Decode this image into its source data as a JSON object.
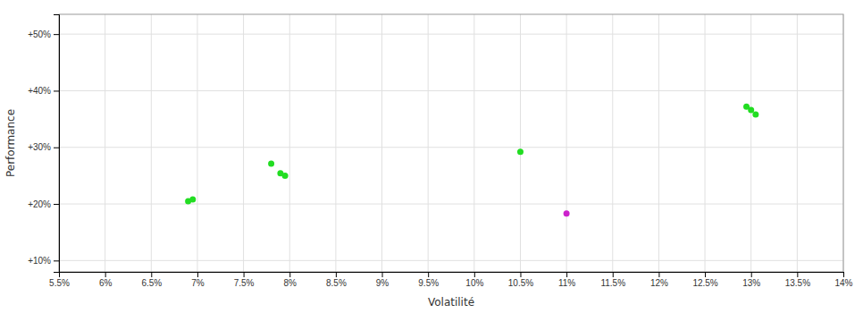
{
  "chart_data": {
    "type": "scatter",
    "xlabel": "Volatilité",
    "ylabel": "Performance",
    "xlim": [
      0.055,
      0.14
    ],
    "ylim": [
      0.08,
      0.535
    ],
    "xticks": [
      {
        "value": 0.055,
        "label": "5.5%"
      },
      {
        "value": 0.06,
        "label": "6%"
      },
      {
        "value": 0.065,
        "label": "6.5%"
      },
      {
        "value": 0.07,
        "label": "7%"
      },
      {
        "value": 0.075,
        "label": "7.5%"
      },
      {
        "value": 0.08,
        "label": "8%"
      },
      {
        "value": 0.085,
        "label": "8.5%"
      },
      {
        "value": 0.09,
        "label": "9%"
      },
      {
        "value": 0.095,
        "label": "9.5%"
      },
      {
        "value": 0.1,
        "label": "10%"
      },
      {
        "value": 0.105,
        "label": "10.5%"
      },
      {
        "value": 0.11,
        "label": "11%"
      },
      {
        "value": 0.115,
        "label": "11.5%"
      },
      {
        "value": 0.12,
        "label": "12%"
      },
      {
        "value": 0.125,
        "label": "12.5%"
      },
      {
        "value": 0.13,
        "label": "13%"
      },
      {
        "value": 0.135,
        "label": "13.5%"
      },
      {
        "value": 0.14,
        "label": "14%"
      }
    ],
    "yticks": [
      {
        "value": 0.1,
        "label": "+10%"
      },
      {
        "value": 0.2,
        "label": "+20%"
      },
      {
        "value": 0.3,
        "label": "+30%"
      },
      {
        "value": 0.4,
        "label": "+40%"
      },
      {
        "value": 0.5,
        "label": "+50%"
      }
    ],
    "grid": true,
    "series": [
      {
        "color": "#22dd22",
        "x": [
          0.069,
          0.0695,
          0.078,
          0.079,
          0.0795,
          0.105,
          0.1295,
          0.13,
          0.1305
        ],
        "values": [
          0.205,
          0.208,
          0.271,
          0.254,
          0.25,
          0.292,
          0.372,
          0.366,
          0.358
        ]
      },
      {
        "color": "#cc22cc",
        "x": [
          0.11
        ],
        "values": [
          0.183
        ]
      }
    ]
  }
}
